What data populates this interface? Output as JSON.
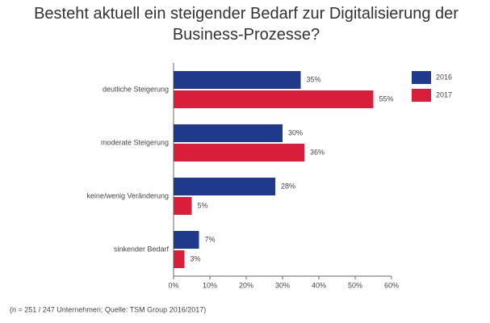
{
  "chart_data": {
    "type": "hbar",
    "title": "Besteht aktuell ein steigender Bedarf zur Digitalisierung der Business-Prozesse?",
    "categories": [
      "deutliche Steigerung",
      "moderate Steigerung",
      "keine/wenig Veränderung",
      "sinkender Bedarf"
    ],
    "series": [
      {
        "name": "2016",
        "color": "#1f3a8a",
        "values": [
          35,
          30,
          28,
          7
        ],
        "value_labels": [
          "35%",
          "30%",
          "28%",
          "7%"
        ]
      },
      {
        "name": "2017",
        "color": "#d81e3a",
        "values": [
          55,
          36,
          5,
          3
        ],
        "value_labels": [
          "55%",
          "36%",
          "5%",
          "3%"
        ]
      }
    ],
    "xlim": [
      0,
      60
    ],
    "xticks": [
      {
        "value": 0,
        "label": "0%"
      },
      {
        "value": 10,
        "label": "10%"
      },
      {
        "value": 20,
        "label": "20%"
      },
      {
        "value": 30,
        "label": "30%"
      },
      {
        "value": 40,
        "label": "40%"
      },
      {
        "value": 50,
        "label": "50%"
      },
      {
        "value": 60,
        "label": "60%"
      }
    ],
    "legend": "top-right",
    "footnote": "(n = 251 / 247 Unternehmen; Quelle: TSM Group 2016/2017)"
  }
}
